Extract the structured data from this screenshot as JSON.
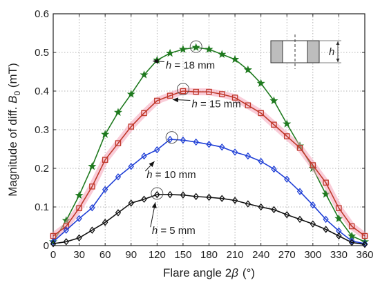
{
  "chart_data": {
    "type": "line",
    "xlabel": {
      "main": "Flare angle 2",
      "symbol": "β",
      "unit": "(°)"
    },
    "ylabel": {
      "main": "Magnitude of diff. ",
      "symbol": "B",
      "sub": "0",
      "unit": " (mT)"
    },
    "xlim": [
      0,
      360
    ],
    "ylim": [
      0,
      0.6
    ],
    "xticks": [
      0,
      30,
      60,
      90,
      120,
      150,
      180,
      210,
      240,
      270,
      300,
      330,
      360
    ],
    "xtick_labels": [
      "0",
      "30",
      "60",
      "90",
      "120",
      "150",
      "180",
      "210",
      "240",
      "270",
      "300",
      "330",
      "360"
    ],
    "yticks": [
      0,
      0.1,
      0.2,
      0.3,
      0.4,
      0.5,
      0.6
    ],
    "ytick_labels": [
      "0",
      "0.1",
      "0.2",
      "0.3",
      "0.4",
      "0.5",
      "0.6"
    ],
    "grid": true,
    "x": [
      0,
      15,
      30,
      45,
      60,
      75,
      90,
      105,
      120,
      135,
      150,
      165,
      180,
      195,
      210,
      225,
      240,
      255,
      270,
      285,
      300,
      315,
      330,
      345,
      360
    ],
    "series": [
      {
        "name": "h = 18 mm",
        "label_h": "h",
        "label_rest": " = 18 mm",
        "color": "#1f7a1f",
        "marker": "star",
        "label_at": [
          130,
          0.458
        ],
        "arrow_to": [
          115,
          0.478
        ],
        "circle_at": [
          165,
          0.515
        ],
        "values": [
          0.01,
          0.065,
          0.13,
          0.205,
          0.288,
          0.345,
          0.392,
          0.442,
          0.48,
          0.498,
          0.508,
          0.513,
          0.508,
          0.495,
          0.482,
          0.455,
          0.42,
          0.375,
          0.315,
          0.258,
          0.2,
          0.133,
          0.07,
          0.025,
          0.01
        ]
      },
      {
        "name": "h = 15 mm",
        "label_h": "h",
        "label_rest": " = 15 mm",
        "color": "#c0392b",
        "marker": "square",
        "halo": "#f4a3b8",
        "label_at": [
          160,
          0.358
        ],
        "arrow_to": [
          138,
          0.378
        ],
        "circle_at": [
          150,
          0.405
        ],
        "values": [
          0.025,
          0.05,
          0.097,
          0.153,
          0.222,
          0.265,
          0.308,
          0.343,
          0.375,
          0.388,
          0.4,
          0.398,
          0.398,
          0.392,
          0.383,
          0.363,
          0.343,
          0.313,
          0.283,
          0.253,
          0.208,
          0.163,
          0.097,
          0.05,
          0.025
        ]
      },
      {
        "name": "h = 10 mm",
        "label_h": "h",
        "label_rest": " = 10 mm",
        "color": "#1f3fd6",
        "marker": "diamond",
        "label_at": [
          108,
          0.175
        ],
        "arrow_to": [
          117,
          0.218
        ],
        "circle_at": [
          137,
          0.28
        ],
        "values": [
          0.01,
          0.04,
          0.07,
          0.098,
          0.145,
          0.178,
          0.205,
          0.232,
          0.248,
          0.275,
          0.273,
          0.268,
          0.262,
          0.255,
          0.242,
          0.232,
          0.218,
          0.198,
          0.172,
          0.14,
          0.105,
          0.068,
          0.038,
          0.012,
          0.005
        ]
      },
      {
        "name": "h = 5 mm",
        "label_h": "h",
        "label_rest": " = 5 mm",
        "color": "#111111",
        "marker": "diamond",
        "label_at": [
          114,
          0.03
        ],
        "arrow_to": [
          118,
          0.112
        ],
        "circle_at": [
          120,
          0.135
        ],
        "values": [
          0.005,
          0.01,
          0.02,
          0.04,
          0.06,
          0.085,
          0.11,
          0.12,
          0.132,
          0.132,
          0.131,
          0.127,
          0.125,
          0.122,
          0.117,
          0.108,
          0.1,
          0.093,
          0.08,
          0.068,
          0.056,
          0.042,
          0.025,
          0.008,
          0.003
        ]
      }
    ],
    "inset": {
      "label": "h"
    }
  }
}
